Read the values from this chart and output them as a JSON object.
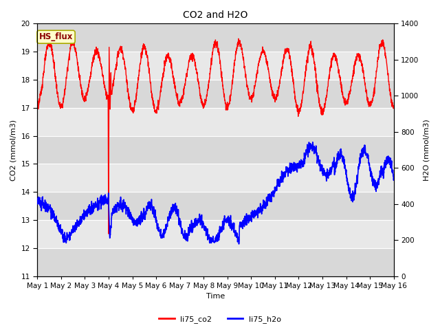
{
  "title": "CO2 and H2O",
  "xlabel": "Time",
  "ylabel_left": "CO2 (mmol/m3)",
  "ylabel_right": "H2O (mmol/m3)",
  "ylim_left": [
    11.0,
    20.0
  ],
  "ylim_right": [
    0,
    1400
  ],
  "yticks_left": [
    11.0,
    12.0,
    13.0,
    14.0,
    15.0,
    16.0,
    17.0,
    18.0,
    19.0,
    20.0
  ],
  "yticks_right": [
    0,
    200,
    400,
    600,
    800,
    1000,
    1200,
    1400
  ],
  "xtick_labels": [
    "May 1",
    "May 2",
    "May 3",
    "May 4",
    "May 5",
    "May 6",
    "May 7",
    "May 8",
    "May 9",
    "May 10",
    "May 11",
    "May 12",
    "May 13",
    "May 14",
    "May 15",
    "May 16"
  ],
  "legend_labels": [
    "li75_co2",
    "li75_h2o"
  ],
  "legend_colors": [
    "red",
    "blue"
  ],
  "annotation_text": "HS_flux",
  "annotation_color": "#8B0000",
  "annotation_bg": "#FFFFCC",
  "annotation_edge": "#AAAA00",
  "plot_bg": "#E8E8E8",
  "band1_color": "#D8D8D8",
  "band2_color": "#E8E8E8",
  "grid_color": "white",
  "linewidth_co2": 1.0,
  "linewidth_h2o": 1.2,
  "title_fontsize": 10,
  "label_fontsize": 8,
  "tick_fontsize": 7.5,
  "legend_fontsize": 8
}
